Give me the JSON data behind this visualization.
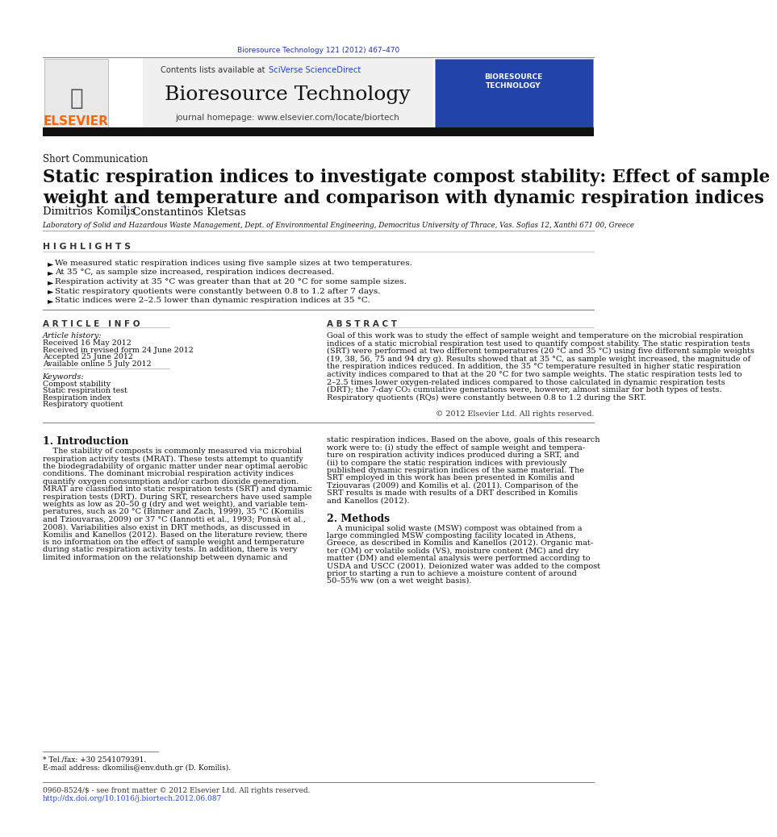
{
  "page_width": 9.92,
  "page_height": 13.23,
  "background": "#ffffff",
  "journal_ref": "Bioresource Technology 121 (2012) 467–470",
  "journal_ref_color": "#2233aa",
  "contents_text": "Contents lists available at ",
  "sciverse_text": "SciVerse ScienceDirect",
  "journal_title": "Bioresource Technology",
  "journal_homepage": "journal homepage: www.elsevier.com/locate/biortech",
  "elsevier_color": "#ff6600",
  "link_color": "#2244cc",
  "section_type": "Short Communication",
  "paper_title": "Static respiration indices to investigate compost stability: Effect of sample\nweight and temperature and comparison with dynamic respiration indices",
  "authors_plain": "Dimitrios Komilis *, Constantinos Kletsas",
  "affiliation": "Laboratory of Solid and Hazardous Waste Management, Dept. of Environmental Engineering, Democritus University of Thrace, Vas. Sofias 12, Xanthi 671 00, Greece",
  "highlights_title": "H I G H L I G H T S",
  "highlights": [
    "We measured static respiration indices using five sample sizes at two temperatures.",
    "At 35 °C, as sample size increased, respiration indices decreased.",
    "Respiration activity at 35 °C was greater than that at 20 °C for some sample sizes.",
    "Static respiratory quotients were constantly between 0.8 to 1.2 after 7 days.",
    "Static indices were 2–2.5 lower than dynamic respiration indices at 35 °C."
  ],
  "article_info_title": "A R T I C L E   I N F O",
  "article_history_title": "Article history:",
  "received": "Received 16 May 2012",
  "received_revised": "Received in revised form 24 June 2012",
  "accepted": "Accepted 25 June 2012",
  "available": "Available online 5 July 2012",
  "keywords_title": "Keywords:",
  "keywords": [
    "Compost stability",
    "Static respiration test",
    "Respiration index",
    "Respiratory quotient"
  ],
  "abstract_title": "A B S T R A C T",
  "abstract_lines": [
    "Goal of this work was to study the effect of sample weight and temperature on the microbial respiration",
    "indices of a static microbial respiration test used to quantify compost stability. The static respiration tests",
    "(SRT) were performed at two different temperatures (20 °C and 35 °C) using five different sample weights",
    "(19, 38, 56, 75 and 94 dry g). Results showed that at 35 °C, as sample weight increased, the magnitude of",
    "the respiration indices reduced. In addition, the 35 °C temperature resulted in higher static respiration",
    "activity indices compared to that at the 20 °C for two sample weights. The static respiration tests led to",
    "2–2.5 times lower oxygen-related indices compared to those calculated in dynamic respiration tests",
    "(DRT); the 7-day CO₂ cumulative generations were, however, almost similar for both types of tests.",
    "Respiratory quotients (RQs) were constantly between 0.8 to 1.2 during the SRT."
  ],
  "copyright": "© 2012 Elsevier Ltd. All rights reserved.",
  "intro_title": "1. Introduction",
  "intro_col1_lines": [
    "    The stability of composts is commonly measured via microbial",
    "respiration activity tests (MRAT). These tests attempt to quantify",
    "the biodegradability of organic matter under near optimal aerobic",
    "conditions. The dominant microbial respiration activity indices",
    "quantify oxygen consumption and/or carbon dioxide generation.",
    "MRAT are classified into static respiration tests (SRT) and dynamic",
    "respiration tests (DRT). During SRT, researchers have used sample",
    "weights as low as 20–50 g (dry and wet weight), and variable tem-",
    "peratures, such as 20 °C (Binner and Zach, 1999), 35 °C (Komilis",
    "and Tziouvaras, 2009) or 37 °C (Iannotti et al., 1993; Ponsà et al.,",
    "2008). Variabilities also exist in DRT methods, as discussed in",
    "Komilis and Kanellos (2012). Based on the literature review, there",
    "is no information on the effect of sample weight and temperature",
    "during static respiration activity tests. In addition, there is very",
    "limited information on the relationship between dynamic and"
  ],
  "intro_col2_lines": [
    "static respiration indices. Based on the above, goals of this research",
    "work were to: (i) study the effect of sample weight and tempera-",
    "ture on respiration activity indices produced during a SRT, and",
    "(ii) to compare the static respiration indices with previously",
    "published dynamic respiration indices of the same material. The",
    "SRT employed in this work has been presented in Komilis and",
    "Tziouvaras (2009) and Komilis et al. (2011). Comparison of the",
    "SRT results is made with results of a DRT described in Komilis",
    "and Kanellos (2012)."
  ],
  "methods_title": "2. Methods",
  "methods_col2_lines": [
    "    A municipal solid waste (MSW) compost was obtained from a",
    "large commingled MSW composting facility located in Athens,",
    "Greece, as described in Komilis and Kanellos (2012). Organic mat-",
    "ter (OM) or volatile solids (VS), moisture content (MC) and dry",
    "matter (DM) and elemental analysis were performed according to",
    "USDA and USCC (2001). Deionized water was added to the compost",
    "prior to starting a run to achieve a moisture content of around",
    "50–55% ww (on a wet weight basis)."
  ],
  "footnote1": "* Tel./fax: +30 2541079391.",
  "footnote2": "E-mail address: dkomilis@env.duth.gr (D. Komilis).",
  "footer1": "0960-8524/$ - see front matter © 2012 Elsevier Ltd. All rights reserved.",
  "footer2": "http://dx.doi.org/10.1016/j.biortech.2012.06.087",
  "header_bg": "#f0f0f0",
  "dark_bar_color": "#111111"
}
